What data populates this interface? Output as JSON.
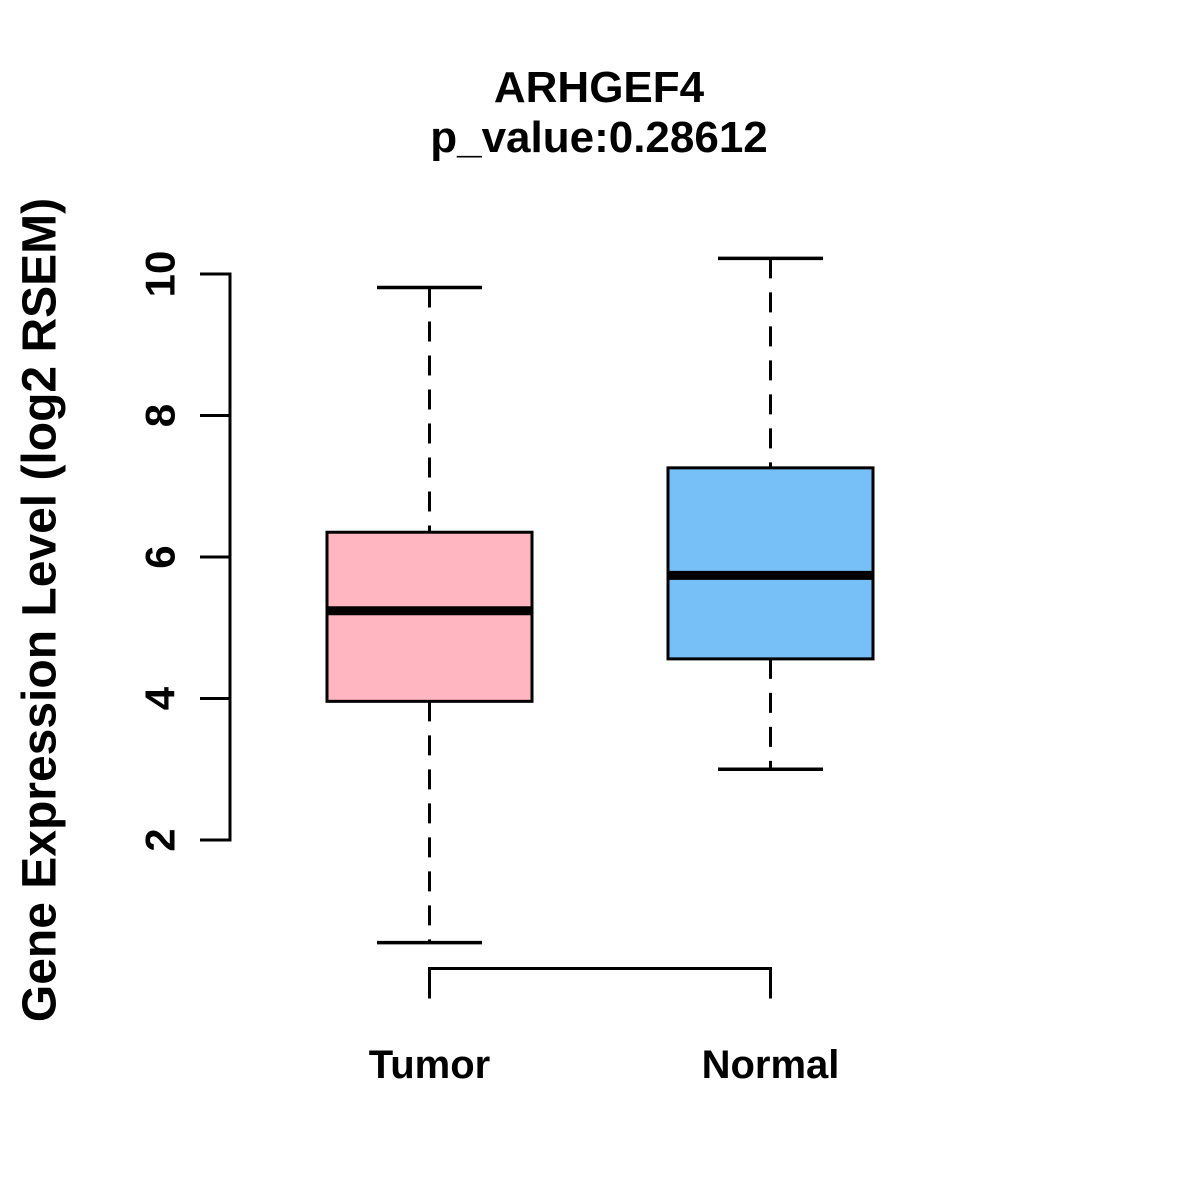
{
  "chart_data": {
    "type": "boxplot",
    "title": "ARHGEF4",
    "subtitle": "p_value:0.28612",
    "ylabel": "Gene Expression Level (log2 RSEM)",
    "xlabel": "",
    "ytick_values": [
      2,
      4,
      6,
      8,
      10
    ],
    "ytick_labels": [
      "2",
      "4",
      "6",
      "8",
      "10"
    ],
    "yaxis_tick_range": [
      2,
      10
    ],
    "grid": "off",
    "legend": "none",
    "whisker_style": "dashed",
    "categories": [
      "Tumor",
      "Normal"
    ],
    "groups": [
      {
        "label": "Tumor",
        "fill_color": "#FFB6C1",
        "stroke_color": "#000000",
        "whisker_low": 0.55,
        "q1": 3.96,
        "median": 5.24,
        "q3": 6.35,
        "whisker_high": 9.81
      },
      {
        "label": "Normal",
        "fill_color": "#76BFF7",
        "stroke_color": "#000000",
        "whisker_low": 3.0,
        "q1": 4.56,
        "median": 5.74,
        "q3": 7.26,
        "whisker_high": 10.22
      }
    ],
    "colors": {
      "axis": "#000000",
      "text": "#000000",
      "background": "#ffffff"
    }
  }
}
